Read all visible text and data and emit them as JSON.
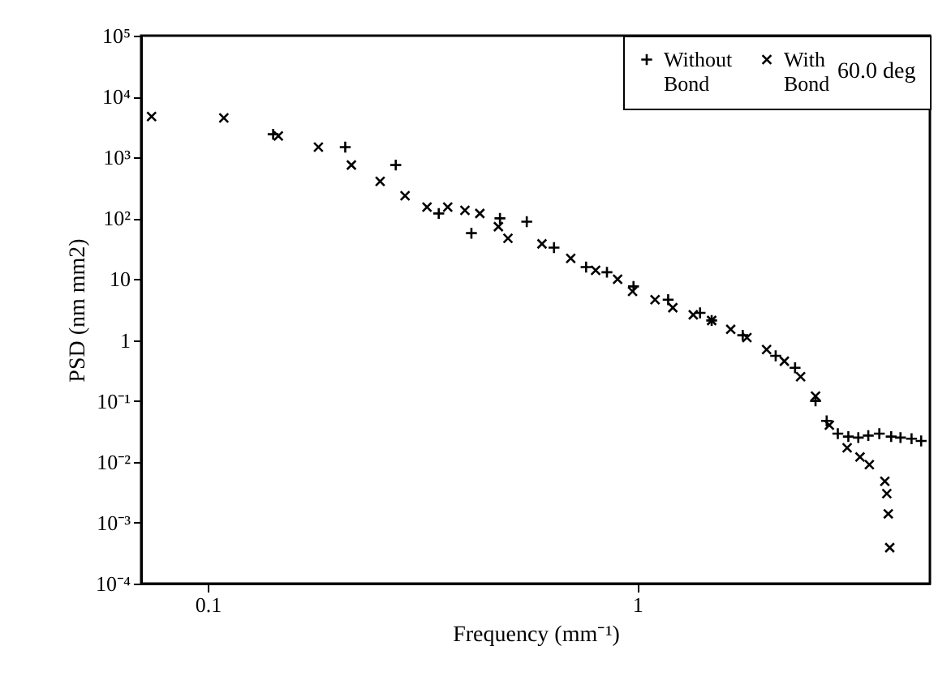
{
  "chart_data": {
    "type": "scatter",
    "xlabel": "Frequency (mm⁻¹)",
    "ylabel": "PSD (nm mm2)",
    "legend_title": "60.0 deg",
    "legend": "top right",
    "grid": false,
    "log": "xy",
    "xlim": [
      0.07,
      4.8
    ],
    "xticks": [
      0.1,
      1
    ],
    "ylim": [
      0.0001,
      100000
    ],
    "yticks": [
      {
        "value": 0.0001,
        "label": "10⁻⁴"
      },
      {
        "value": 0.001,
        "label": "10⁻³"
      },
      {
        "value": 0.01,
        "label": "10⁻²"
      },
      {
        "value": 0.1,
        "label": "10⁻¹"
      },
      1,
      10,
      {
        "value": 100,
        "label": "10²"
      },
      {
        "value": 1000,
        "label": "10³"
      },
      {
        "value": 10000,
        "label": "10⁴"
      },
      {
        "value": 100000,
        "label": "10⁵"
      }
    ],
    "series": [
      {
        "name": "Without Bond",
        "color": "#000000",
        "marker": "cross",
        "x": [
          0.142,
          0.209,
          0.274,
          0.345,
          0.411,
          0.479,
          0.553,
          0.64,
          0.76,
          0.85,
          0.98,
          1.18,
          1.4,
          1.49,
          1.76,
          2.1,
          2.33,
          2.6,
          2.76,
          2.93,
          3.1,
          3.27,
          3.45,
          3.66,
          3.9,
          4.1,
          4.35,
          4.58
        ],
        "values": [
          2400,
          1480,
          750,
          120,
          57,
          100,
          88,
          33,
          15.8,
          13,
          7.6,
          4.6,
          2.8,
          2.1,
          1.2,
          0.55,
          0.35,
          0.1,
          0.047,
          0.029,
          0.026,
          0.025,
          0.027,
          0.029,
          0.026,
          0.025,
          0.024,
          0.022
        ]
      },
      {
        "name": "With Bond",
        "color": "#000000",
        "marker": "x",
        "x": [
          0.074,
          0.109,
          0.146,
          0.181,
          0.216,
          0.252,
          0.288,
          0.324,
          0.362,
          0.397,
          0.43,
          0.475,
          0.5,
          0.6,
          0.7,
          0.8,
          0.9,
          0.975,
          1.1,
          1.21,
          1.35,
          1.49,
          1.65,
          1.8,
          2.0,
          2.2,
          2.4,
          2.6,
          2.8,
          3.08,
          3.3,
          3.47,
          3.77,
          3.81,
          3.84,
          3.87
        ],
        "values": [
          4700,
          4450,
          2250,
          1480,
          750,
          405,
          235,
          153,
          153,
          135,
          120,
          73,
          47,
          38,
          22,
          14,
          10,
          6.3,
          4.6,
          3.4,
          2.6,
          2.1,
          1.5,
          1.1,
          0.7,
          0.45,
          0.25,
          0.12,
          0.04,
          0.017,
          0.012,
          0.009,
          0.0048,
          0.003,
          0.0014,
          0.00039
        ]
      }
    ]
  }
}
